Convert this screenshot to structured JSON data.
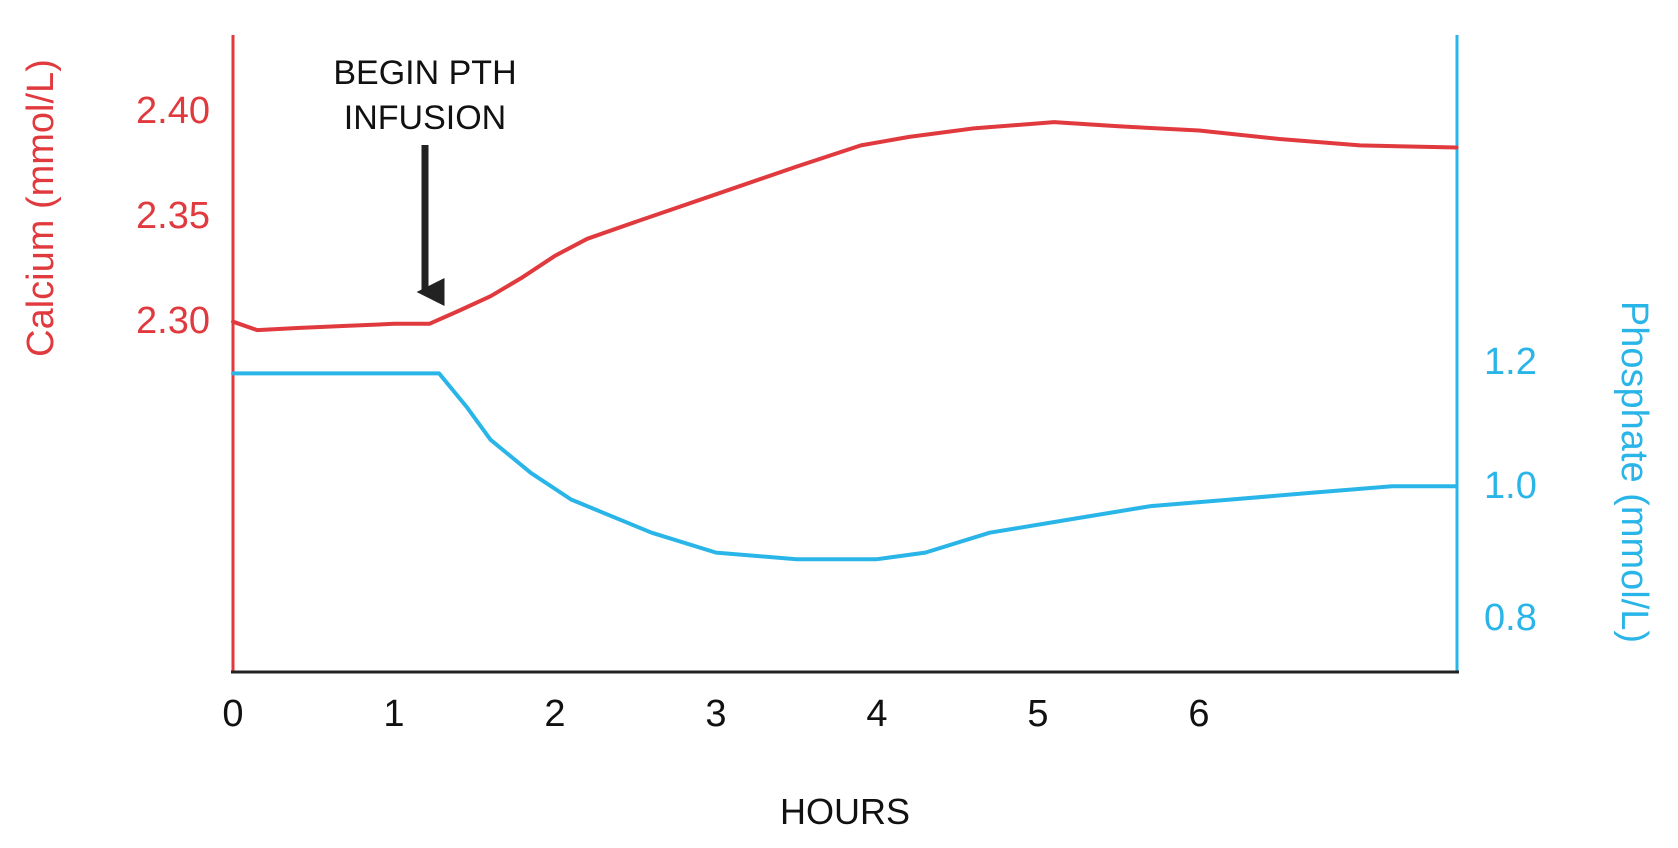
{
  "chart_data": {
    "type": "line",
    "annotation": {
      "lines": [
        "BEGIN PTH",
        "INFUSION"
      ],
      "x": 1.2
    },
    "xlabel": "HOURS",
    "x_ticks": [
      "0",
      "1",
      "2",
      "3",
      "4",
      "5",
      "6"
    ],
    "xlim": [
      0,
      7.6
    ],
    "left_axis": {
      "label": "Calcium (mmol/L)",
      "ticks": [
        {
          "value": 2.3,
          "label": "2.30"
        },
        {
          "value": 2.35,
          "label": "2.35"
        },
        {
          "value": 2.4,
          "label": "2.40"
        }
      ],
      "ylim": [
        2.135,
        2.435
      ],
      "color": "#e03a3e"
    },
    "right_axis": {
      "label": "Phosphate (mmol/L)",
      "ticks": [
        {
          "value": 0.8,
          "label": "0.8"
        },
        {
          "value": 1.0,
          "label": "1.0"
        },
        {
          "value": 1.2,
          "label": "1.2"
        }
      ],
      "ylim": [
        0.72,
        1.68
      ],
      "color": "#29b5e8"
    },
    "series": [
      {
        "axis": "left",
        "color": "#e03a3e",
        "points": [
          [
            0.0,
            2.3
          ],
          [
            0.15,
            2.296
          ],
          [
            0.4,
            2.297
          ],
          [
            0.7,
            2.298
          ],
          [
            1.0,
            2.299
          ],
          [
            1.22,
            2.299
          ],
          [
            1.4,
            2.305
          ],
          [
            1.6,
            2.312
          ],
          [
            1.8,
            2.321
          ],
          [
            2.0,
            2.331
          ],
          [
            2.2,
            2.339
          ],
          [
            2.5,
            2.347
          ],
          [
            3.0,
            2.36
          ],
          [
            3.5,
            2.373
          ],
          [
            3.9,
            2.383
          ],
          [
            4.2,
            2.387
          ],
          [
            4.6,
            2.391
          ],
          [
            5.1,
            2.394
          ],
          [
            5.5,
            2.392
          ],
          [
            6.0,
            2.39
          ],
          [
            6.5,
            2.386
          ],
          [
            7.0,
            2.383
          ],
          [
            7.6,
            2.382
          ]
        ]
      },
      {
        "axis": "right",
        "color": "#29b5e8",
        "points": [
          [
            0.0,
            1.17
          ],
          [
            0.5,
            1.17
          ],
          [
            1.0,
            1.17
          ],
          [
            1.28,
            1.17
          ],
          [
            1.45,
            1.12
          ],
          [
            1.6,
            1.07
          ],
          [
            1.85,
            1.02
          ],
          [
            2.1,
            0.98
          ],
          [
            2.3,
            0.96
          ],
          [
            2.6,
            0.93
          ],
          [
            3.0,
            0.9
          ],
          [
            3.5,
            0.89
          ],
          [
            4.0,
            0.89
          ],
          [
            4.3,
            0.9
          ],
          [
            4.7,
            0.93
          ],
          [
            5.2,
            0.95
          ],
          [
            5.7,
            0.97
          ],
          [
            6.2,
            0.98
          ],
          [
            6.7,
            0.99
          ],
          [
            7.2,
            1.0
          ],
          [
            7.6,
            1.0
          ]
        ]
      }
    ]
  }
}
